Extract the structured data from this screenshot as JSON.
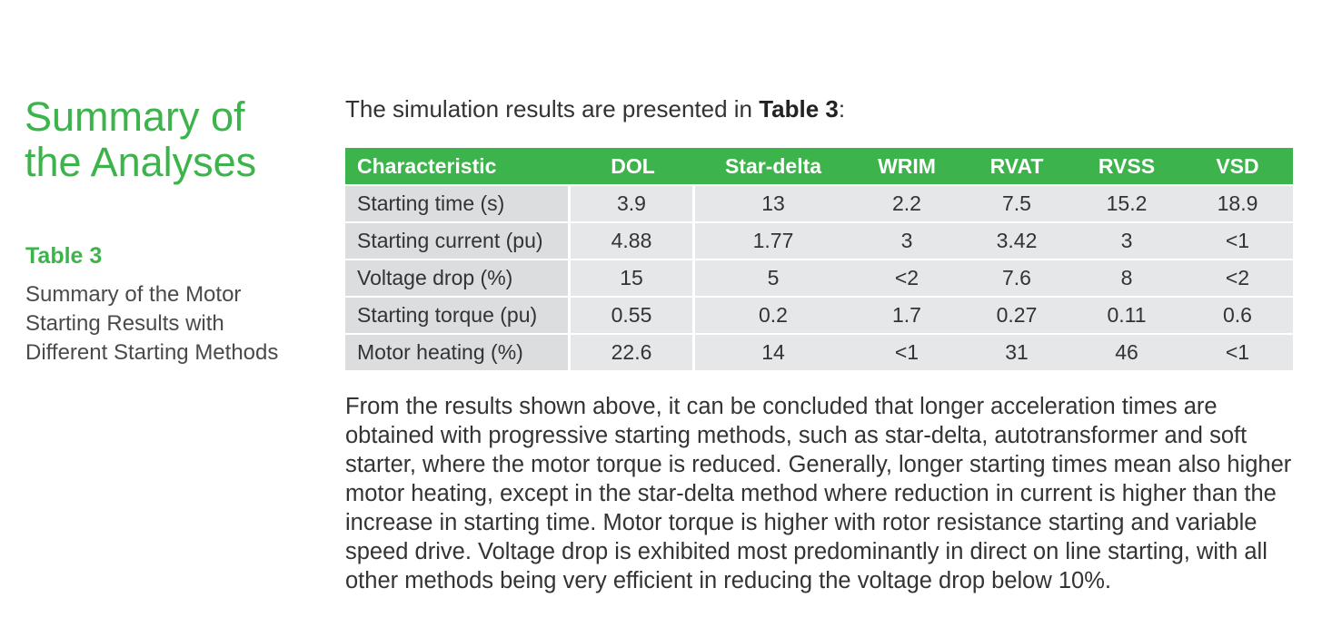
{
  "sidebar": {
    "title_line1": "Summary of",
    "title_line2": "the Analyses",
    "table_label": "Table 3",
    "caption_line1": "Summary of the Motor",
    "caption_line2": "Starting Results with",
    "caption_line3": "Different Starting Methods"
  },
  "intro": {
    "prefix": "The simulation results are presented in ",
    "ref": "Table 3",
    "suffix": ":"
  },
  "table": {
    "headers": [
      "Characteristic",
      "DOL",
      "Star-delta",
      "WRIM",
      "RVAT",
      "RVSS",
      "VSD"
    ],
    "rows": [
      [
        "Starting time (s)",
        "3.9",
        "13",
        "2.2",
        "7.5",
        "15.2",
        "18.9"
      ],
      [
        "Starting current (pu)",
        "4.88",
        "1.77",
        "3",
        "3.42",
        "3",
        "<1"
      ],
      [
        "Voltage drop (%)",
        "15",
        "5",
        "<2",
        "7.6",
        "8",
        "<2"
      ],
      [
        "Starting torque (pu)",
        "0.55",
        "0.2",
        "1.7",
        "0.27",
        "0.11",
        "0.6"
      ],
      [
        "Motor heating (%)",
        "22.6",
        "14",
        "<1",
        "31",
        "46",
        "<1"
      ]
    ]
  },
  "conclusion": {
    "text": "From the results shown above, it can be concluded that longer acceleration times are obtained with progressive starting methods, such as star-delta, autotransformer and soft starter, where the motor torque is reduced. Generally, longer starting times mean also higher motor heating, except in the star-delta method where reduction in current is higher than the increase in starting time. Motor torque is higher with rotor resistance starting and variable speed drive. Voltage drop is exhibited most predominantly in direct on line starting, with all other methods being very efficient in reducing the voltage drop below 10%."
  },
  "colors": {
    "accent": "#3cb44b",
    "row_bg": "#e6e7e8"
  }
}
